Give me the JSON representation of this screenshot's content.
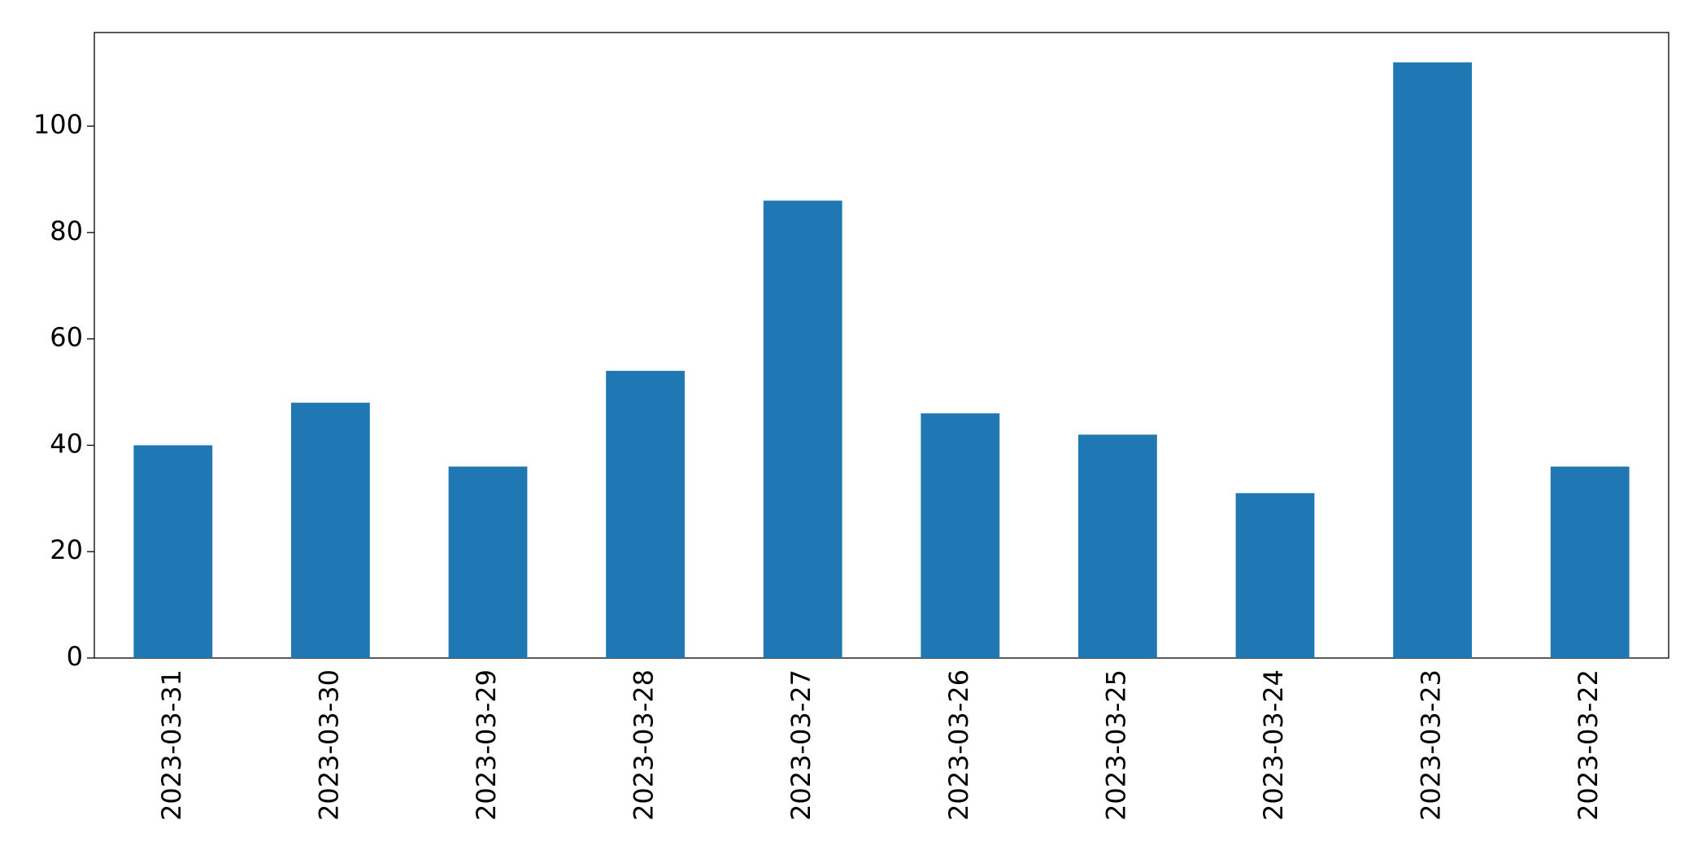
{
  "chart_data": {
    "type": "bar",
    "categories": [
      "2023-03-31",
      "2023-03-30",
      "2023-03-29",
      "2023-03-28",
      "2023-03-27",
      "2023-03-26",
      "2023-03-25",
      "2023-03-24",
      "2023-03-23",
      "2023-03-22"
    ],
    "values": [
      40,
      48,
      36,
      54,
      86,
      46,
      42,
      31,
      112,
      36
    ],
    "color": "#1f77b4",
    "ylim": [
      0,
      117.6
    ],
    "yticks": [
      0,
      20,
      40,
      60,
      80,
      100
    ],
    "grid": false
  }
}
